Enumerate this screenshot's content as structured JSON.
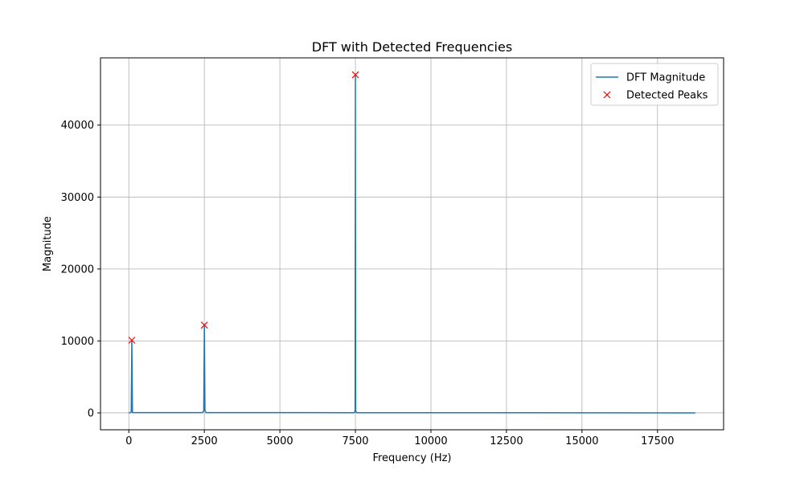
{
  "chart_data": {
    "type": "line",
    "title": "DFT with Detected Frequencies",
    "xlabel": "Frequency (Hz)",
    "ylabel": "Magnitude",
    "xlim": [
      -937.5,
      19687.5
    ],
    "ylim": [
      -2350,
      49350
    ],
    "xticks": [
      0,
      2500,
      5000,
      7500,
      10000,
      12500,
      15000,
      17500
    ],
    "yticks": [
      0,
      10000,
      20000,
      30000,
      40000
    ],
    "grid": true,
    "legend_position": "top-right",
    "series": [
      {
        "name": "DFT Magnitude",
        "kind": "line",
        "color": "#1f77b4",
        "x": [
          0,
          60,
          80,
          100,
          120,
          2440,
          2480,
          2500,
          2520,
          2560,
          7460,
          7490,
          7500,
          7510,
          7540,
          18750
        ],
        "y": [
          30,
          40,
          200,
          10100,
          40,
          40,
          300,
          12200,
          300,
          40,
          30,
          300,
          47000,
          300,
          30,
          0
        ]
      },
      {
        "name": "Detected Peaks",
        "kind": "scatter",
        "marker": "x",
        "color": "#ff0000",
        "x": [
          100,
          2500,
          7500
        ],
        "y": [
          10100,
          12200,
          47000
        ]
      }
    ]
  }
}
